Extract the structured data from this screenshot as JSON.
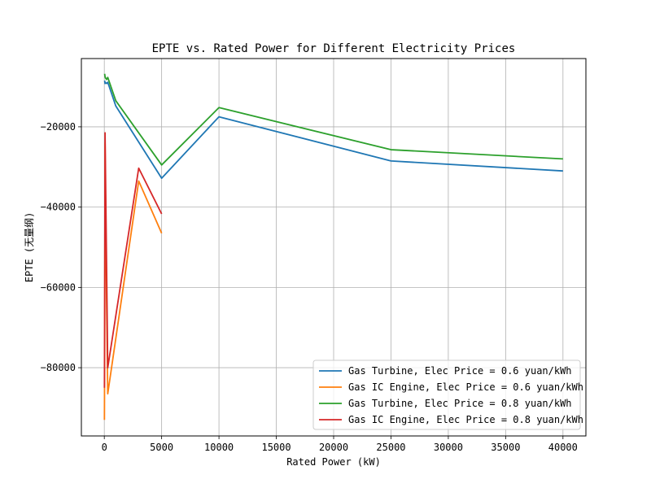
{
  "chart_data": {
    "type": "line",
    "title": "EPTE vs. Rated Power for Different Electricity Prices",
    "xlabel": "Rated Power (kW)",
    "ylabel": "EPTE (无量纲)",
    "xlim": [
      -2000,
      42000
    ],
    "ylim": [
      -97000,
      -3000
    ],
    "xticks": [
      0,
      5000,
      10000,
      15000,
      20000,
      25000,
      30000,
      35000,
      40000
    ],
    "yticks": [
      -80000,
      -60000,
      -40000,
      -20000
    ],
    "grid": true,
    "legend_position": "lower-right",
    "series": [
      {
        "name": "Gas Turbine, Elec Price = 0.6 yuan/kWh",
        "color": "#1f77b4",
        "x": [
          30,
          65,
          100,
          200,
          300,
          1000,
          5000,
          10000,
          25000,
          40000
        ],
        "y": [
          -8500,
          -9200,
          -9000,
          -9200,
          -8900,
          -14800,
          -32800,
          -17500,
          -28500,
          -31000
        ]
      },
      {
        "name": "Gas IC Engine, Elec Price = 0.6 yuan/kWh",
        "color": "#ff7f0e",
        "x": [
          10,
          30,
          65,
          100,
          200,
          300,
          3000,
          5000
        ],
        "y": [
          -93000,
          -78000,
          -24000,
          -36000,
          -64000,
          -86500,
          -33500,
          -46500
        ]
      },
      {
        "name": "Gas Turbine, Elec Price = 0.8 yuan/kWh",
        "color": "#2ca02c",
        "x": [
          30,
          65,
          100,
          200,
          300,
          1000,
          5000,
          10000,
          25000,
          40000
        ],
        "y": [
          -6800,
          -7500,
          -7800,
          -8200,
          -7700,
          -13500,
          -29500,
          -15200,
          -25700,
          -28000
        ]
      },
      {
        "name": "Gas IC Engine, Elec Price = 0.8 yuan/kWh",
        "color": "#d62728",
        "x": [
          10,
          30,
          65,
          100,
          200,
          300,
          3000,
          5000
        ],
        "y": [
          -85000,
          -70000,
          -21500,
          -30000,
          -55000,
          -80000,
          -30300,
          -41700
        ]
      }
    ]
  }
}
